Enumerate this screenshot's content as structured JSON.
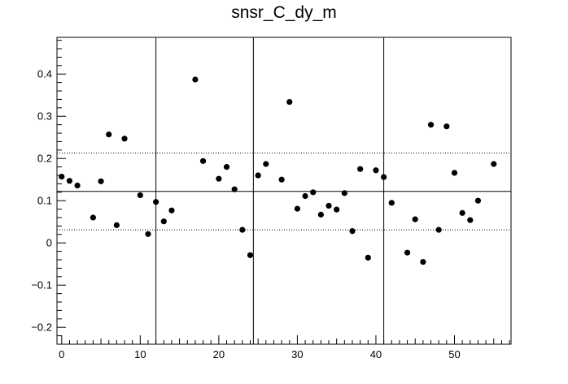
{
  "chart_data": {
    "type": "scatter",
    "title": "snsr_C_dy_m",
    "xlabel": "",
    "ylabel": "",
    "xlim": [
      -0.6,
      57.2
    ],
    "ylim": [
      -0.24,
      0.487
    ],
    "x_ticks": [
      0,
      10,
      20,
      30,
      40,
      50
    ],
    "x_tick_labels": [
      "0",
      "10",
      "20",
      "30",
      "40",
      "50"
    ],
    "y_ticks": [
      -0.2,
      -0.1,
      0,
      0.1,
      0.2,
      0.3,
      0.4
    ],
    "y_tick_labels": [
      "−0.2",
      "−0.1",
      "0",
      "0.1",
      "0.2",
      "0.3",
      "0.4"
    ],
    "grid": false,
    "legend": "none",
    "reference_lines": {
      "mean": 0.122,
      "upper": 0.213,
      "lower": 0.031,
      "vertical_x": [
        12.0,
        24.4,
        41.0
      ]
    },
    "series": [
      {
        "x": [
          0,
          1,
          2,
          4,
          5,
          6,
          7,
          8,
          10,
          11,
          12,
          13,
          14,
          17,
          18,
          20,
          21,
          22,
          23,
          24,
          25,
          26,
          28,
          29,
          30,
          31,
          32,
          33,
          34,
          35,
          36,
          37,
          38,
          39,
          40,
          41,
          42,
          44,
          45,
          46,
          47,
          48,
          49,
          50,
          51,
          52,
          53,
          55
        ],
        "y": [
          0.157,
          0.147,
          0.136,
          0.06,
          0.146,
          0.257,
          0.042,
          0.247,
          0.113,
          0.021,
          0.097,
          0.051,
          0.077,
          0.387,
          0.194,
          0.152,
          0.18,
          0.127,
          0.031,
          -0.029,
          0.16,
          0.187,
          0.15,
          0.334,
          0.081,
          0.111,
          0.12,
          0.067,
          0.088,
          0.079,
          0.118,
          0.028,
          0.175,
          -0.035,
          0.172,
          0.156,
          0.095,
          -0.023,
          0.056,
          -0.045,
          0.28,
          0.031,
          0.276,
          0.166,
          0.071,
          0.054,
          0.1,
          0.187
        ]
      }
    ]
  },
  "colors": {
    "axis": "#000000",
    "marker": "#000000",
    "background": "#ffffff"
  }
}
